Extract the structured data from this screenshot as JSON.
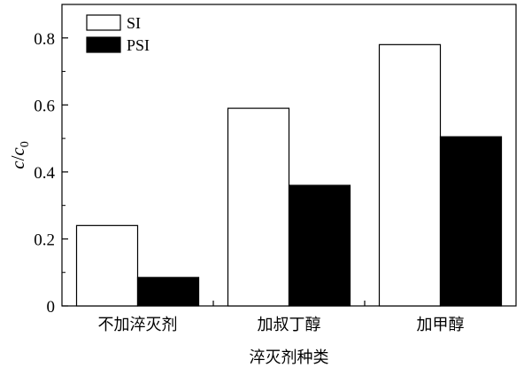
{
  "chart_data": {
    "type": "bar",
    "categories": [
      "不加淬灭剂",
      "加叔丁醇",
      "加甲醇"
    ],
    "series": [
      {
        "name": "SI",
        "values": [
          0.24,
          0.59,
          0.78
        ],
        "color": "#ffffff"
      },
      {
        "name": "PSI",
        "values": [
          0.085,
          0.36,
          0.505
        ],
        "color": "#000000"
      }
    ],
    "xlabel": "淬灭剂种类",
    "ylabel": {
      "main": "c",
      "slash": "/",
      "sub_var": "c",
      "sub": "0"
    },
    "ylim": [
      0,
      0.9
    ],
    "yticks": [
      0,
      0.2,
      0.4,
      0.6,
      0.8
    ],
    "ytick_labels": [
      "0",
      "0.2",
      "0.4",
      "0.6",
      "0.8"
    ],
    "legend_position": "top-left",
    "grid": false
  }
}
